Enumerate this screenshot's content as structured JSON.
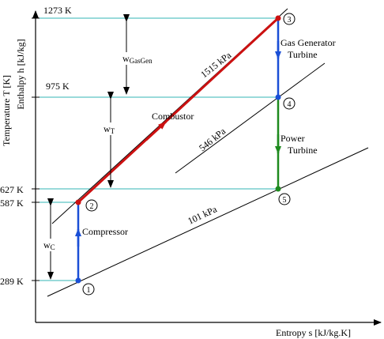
{
  "axes": {
    "y_label_line1": "Temperature T [K]",
    "y_label_line2": "Enthalpy h [kJ/kg]",
    "x_label": "Entropy s [kJ/kg.K]"
  },
  "temperatures": {
    "t1273": "1273 K",
    "t975": "975 K",
    "t627": "627 K",
    "t587": "587 K",
    "t289": "289 K"
  },
  "isobars": {
    "p1515": "1515 kPa",
    "p546": "546 kPa",
    "p101": "101 kPa"
  },
  "states": {
    "s1": "1",
    "s2": "2",
    "s3": "3",
    "s4": "4",
    "s5": "5"
  },
  "processes": {
    "compressor": "Compressor",
    "combustor": "Combustor",
    "gas_gen_1": "Gas Generator",
    "gas_gen_2": "Turbine",
    "power_1": "Power",
    "power_2": "Turbine"
  },
  "work": {
    "w_gasgen_main": "w",
    "w_gasgen_sub": "GasGen",
    "w_t_main": "w",
    "w_t_sub": "T",
    "w_c_main": "w",
    "w_c_sub": "C"
  },
  "colors": {
    "guide_cyan": "#33b5b5",
    "combustor_red": "#cc1111",
    "compressor_blue": "#1a4fd6",
    "power_green": "#1e8a1e"
  }
}
